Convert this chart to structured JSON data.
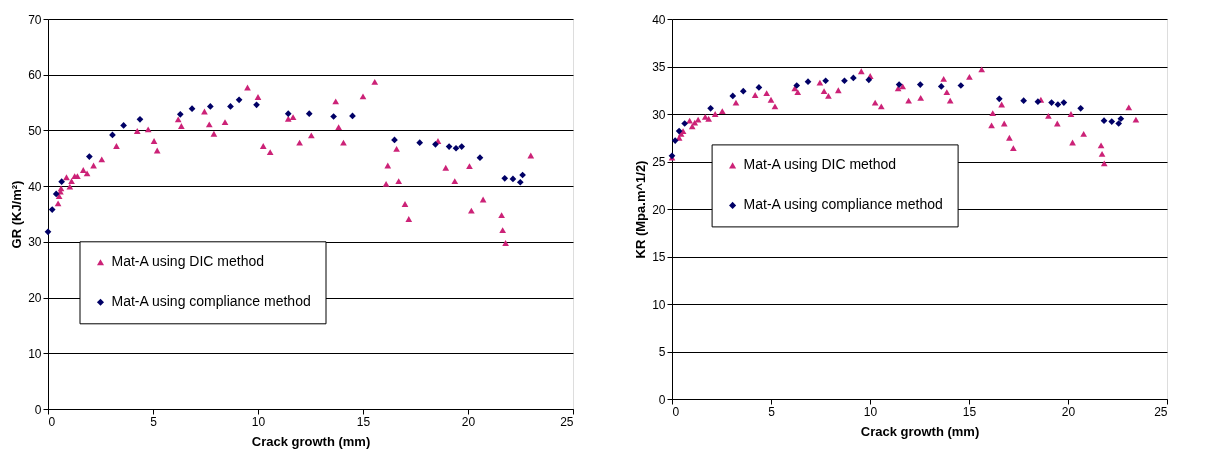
{
  "chart_data": [
    {
      "type": "scatter",
      "xlabel": "Crack growth (mm)",
      "ylabel": "GR (KJ/m²)",
      "xlim": [
        0,
        25
      ],
      "ylim": [
        0,
        70
      ],
      "xticks": [
        0,
        5,
        10,
        15,
        20,
        25
      ],
      "yticks": [
        0,
        10,
        20,
        30,
        40,
        50,
        60,
        70
      ],
      "grid": "y",
      "legend": "bottom left",
      "series": [
        {
          "name": "Mat-A using DIC method",
          "color": "#cc2277",
          "marker": "triangle",
          "x": [
            0.48,
            0.53,
            0.59,
            0.62,
            0.88,
            1.04,
            1.12,
            1.27,
            1.4,
            1.68,
            1.86,
            2.17,
            2.56,
            3.26,
            4.25,
            4.77,
            5.05,
            5.2,
            6.2,
            6.35,
            7.45,
            7.68,
            7.9,
            8.43,
            9.5,
            10.0,
            10.25,
            10.58,
            11.44,
            11.67,
            11.98,
            12.54,
            13.7,
            13.84,
            14.07,
            15.0,
            15.56,
            16.1,
            16.18,
            16.6,
            16.7,
            17.0,
            17.18,
            18.57,
            18.94,
            19.37,
            20.07,
            20.16,
            20.72,
            21.6,
            21.65,
            21.79,
            22.99
          ],
          "values": [
            36.9,
            38.2,
            39.0,
            39.6,
            41.6,
            39.9,
            40.9,
            41.8,
            41.8,
            42.9,
            42.3,
            43.7,
            44.8,
            47.2,
            49.9,
            50.2,
            48.1,
            46.4,
            52.0,
            50.8,
            53.4,
            51.1,
            49.4,
            51.5,
            57.7,
            56.0,
            47.2,
            46.1,
            52.1,
            52.4,
            47.8,
            49.1,
            55.2,
            50.6,
            47.8,
            56.1,
            58.7,
            40.4,
            43.7,
            46.7,
            40.9,
            36.8,
            34.1,
            48.1,
            43.3,
            40.9,
            43.6,
            35.6,
            37.6,
            34.8,
            32.1,
            29.8,
            45.5
          ]
        },
        {
          "name": "Mat-A using compliance method",
          "color": "#000066",
          "marker": "diamond",
          "x": [
            0,
            0.2,
            0.39,
            0.65,
            1.97,
            3.07,
            3.6,
            4.38,
            6.3,
            6.86,
            7.73,
            8.69,
            9.1,
            9.93,
            11.44,
            12.44,
            13.6,
            14.5,
            16.5,
            17.7,
            18.45,
            19.1,
            19.43,
            19.7,
            20.57,
            21.75,
            22.14,
            22.49,
            22.6
          ],
          "values": [
            31.8,
            35.8,
            38.6,
            40.8,
            45.3,
            49.2,
            50.9,
            52.0,
            52.9,
            53.9,
            54.3,
            54.3,
            55.5,
            54.6,
            53.0,
            53.0,
            52.5,
            52.6,
            48.3,
            47.8,
            47.5,
            47.1,
            46.8,
            47.1,
            45.1,
            41.4,
            41.3,
            40.7,
            42.0
          ]
        }
      ]
    },
    {
      "type": "scatter",
      "xlabel": "Crack growth (mm)",
      "ylabel": "KR (Mpa.m^1/2)",
      "xlim": [
        0,
        25
      ],
      "ylim": [
        0,
        40
      ],
      "xticks": [
        0,
        5,
        10,
        15,
        20,
        25
      ],
      "yticks": [
        0,
        5,
        10,
        15,
        20,
        25,
        30,
        35,
        40
      ],
      "grid": "y",
      "legend": "left",
      "series": [
        {
          "name": "Mat-A using DIC method",
          "color": "#cc2277",
          "marker": "triangle",
          "x": [
            0,
            0.36,
            0.46,
            0.56,
            0.89,
            1.02,
            1.15,
            1.32,
            1.68,
            1.85,
            2.18,
            2.54,
            3.23,
            4.2,
            4.78,
            5.0,
            5.2,
            6.2,
            6.35,
            7.47,
            7.68,
            7.9,
            8.4,
            9.56,
            10.01,
            10.26,
            10.57,
            11.42,
            11.65,
            11.95,
            12.56,
            13.72,
            13.88,
            14.05,
            15.02,
            15.64,
            16.2,
            16.14,
            16.65,
            16.78,
            17.04,
            17.24,
            18.63,
            19.01,
            19.46,
            20.15,
            20.23,
            20.79,
            21.67,
            21.72,
            21.83,
            23.07,
            23.43
          ],
          "values": [
            25.4,
            27.5,
            27.9,
            28.2,
            29.3,
            28.7,
            29.1,
            29.4,
            29.7,
            29.5,
            30.0,
            30.3,
            31.2,
            32.0,
            32.2,
            31.5,
            30.8,
            32.7,
            32.3,
            33.3,
            32.4,
            31.9,
            32.5,
            34.5,
            34.0,
            31.2,
            30.8,
            32.7,
            32.9,
            31.4,
            31.7,
            33.7,
            32.3,
            31.4,
            33.9,
            34.7,
            30.1,
            28.8,
            31.0,
            29.0,
            27.5,
            26.4,
            31.5,
            29.8,
            29.0,
            30.0,
            27.0,
            27.9,
            26.7,
            25.8,
            24.8,
            30.7,
            29.4
          ]
        },
        {
          "name": "Mat-A using compliance method",
          "color": "#000066",
          "marker": "diamond",
          "x": [
            0,
            0.16,
            0.36,
            0.64,
            1.95,
            3.07,
            3.6,
            4.39,
            6.3,
            6.87,
            7.76,
            8.71,
            9.16,
            9.94,
            11.47,
            12.54,
            13.6,
            14.59,
            16.53,
            17.76,
            18.48,
            19.17,
            19.49,
            19.79,
            20.64,
            21.82,
            22.21,
            22.56,
            22.67
          ],
          "values": [
            25.6,
            27.2,
            28.2,
            29.0,
            30.6,
            31.9,
            32.4,
            32.8,
            33.0,
            33.4,
            33.5,
            33.5,
            33.8,
            33.6,
            33.1,
            33.1,
            32.9,
            33.0,
            31.6,
            31.4,
            31.3,
            31.2,
            31.0,
            31.2,
            30.6,
            29.3,
            29.2,
            29.0,
            29.5
          ]
        }
      ]
    }
  ]
}
